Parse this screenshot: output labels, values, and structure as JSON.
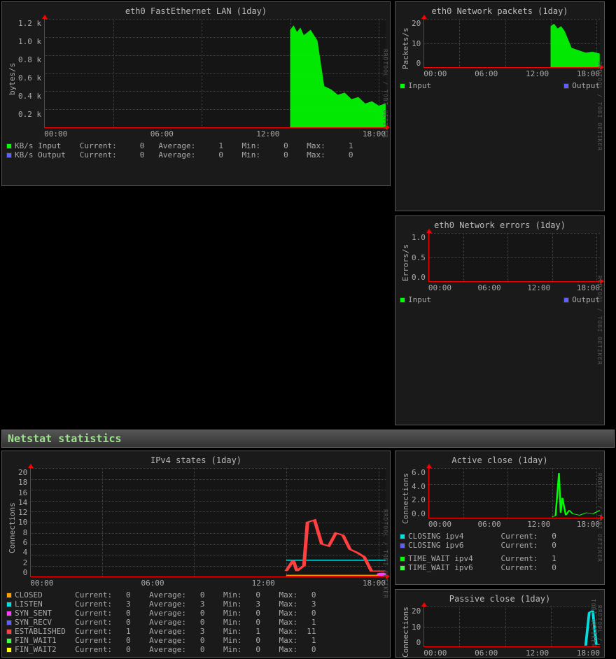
{
  "watermark": "RRDTOOL / TOBI OETIKER",
  "section2_title": "Netstat statistics",
  "colors": {
    "bg": "#000000",
    "panel": "#1a1a1a",
    "axis": "#ff0000",
    "grid": "#444444",
    "text": "#aaaaaa",
    "green": "#00ff00",
    "blue": "#6060ff",
    "orange": "#ffa000",
    "cyan": "#00e0e0",
    "magenta": "#ff40ff",
    "red": "#ff4040",
    "yellow": "#ffff00",
    "green2": "#40ff40",
    "purple": "#8080ff"
  },
  "chart_eth0_fe": {
    "title": "eth0 FastEthernet LAN  (1day)",
    "ylabel": "bytes/s",
    "yticks": [
      "1.2 k",
      "1.0 k",
      "0.8 k",
      "0.6 k",
      "0.4 k",
      "0.2 k",
      ""
    ],
    "xticks": [
      "00:00",
      "06:00",
      "12:00",
      "18:00"
    ],
    "type": "area",
    "series": [
      {
        "name": "KB/s Input",
        "color": "#00ff00",
        "current": "0",
        "average": "1",
        "min": "0",
        "max": "1"
      },
      {
        "name": "KB/s Output",
        "color": "#6060ff",
        "current": "0",
        "average": "0",
        "min": "0",
        "max": "0"
      }
    ],
    "area_green": {
      "x_start_pct": 70,
      "x_end_pct": 100,
      "peak_pct": 95,
      "tail_pct": 25
    }
  },
  "chart_eth0_pkt": {
    "title": "eth0 Network packets  (1day)",
    "ylabel": "Packets/s",
    "yticks": [
      "20",
      "10",
      "0"
    ],
    "xticks": [
      "00:00",
      "06:00",
      "12:00",
      "18:00"
    ],
    "type": "area",
    "legend": [
      {
        "name": "Input",
        "color": "#00ff00"
      },
      {
        "name": "Output",
        "color": "#6060ff"
      }
    ]
  },
  "chart_eth0_err": {
    "title": "eth0 Network errors  (1day)",
    "ylabel": "Errors/s",
    "yticks": [
      "1.0",
      "0.5",
      "0.0"
    ],
    "xticks": [
      "00:00",
      "06:00",
      "12:00",
      "18:00"
    ],
    "type": "area",
    "legend": [
      {
        "name": "Input",
        "color": "#00ff00"
      },
      {
        "name": "Output",
        "color": "#6060ff"
      }
    ]
  },
  "chart_ipv4": {
    "title": "IPv4 states  (1day)",
    "ylabel": "Connections",
    "yticks": [
      "20",
      "18",
      "16",
      "14",
      "12",
      "10",
      "8",
      "6",
      "4",
      "2",
      "0"
    ],
    "xticks": [
      "00:00",
      "06:00",
      "12:00",
      "18:00"
    ],
    "type": "line",
    "series": [
      {
        "name": "CLOSED",
        "color": "#ffa000",
        "current": "0",
        "average": "0",
        "min": "0",
        "max": "0"
      },
      {
        "name": "LISTEN",
        "color": "#00e0e0",
        "current": "3",
        "average": "3",
        "min": "3",
        "max": "3"
      },
      {
        "name": "SYN_SENT",
        "color": "#ff40ff",
        "current": "0",
        "average": "0",
        "min": "0",
        "max": "0"
      },
      {
        "name": "SYN_RECV",
        "color": "#6060ff",
        "current": "0",
        "average": "0",
        "min": "0",
        "max": "1"
      },
      {
        "name": "ESTABLISHED",
        "color": "#ff4040",
        "current": "1",
        "average": "3",
        "min": "1",
        "max": "11"
      },
      {
        "name": "FIN_WAIT1",
        "color": "#40ff40",
        "current": "0",
        "average": "0",
        "min": "0",
        "max": "1"
      },
      {
        "name": "FIN_WAIT2",
        "color": "#ffff00",
        "current": "0",
        "average": "0",
        "min": "0",
        "max": "0"
      }
    ]
  },
  "chart_active_close": {
    "title": "Active close  (1day)",
    "ylabel": "Connections",
    "yticks": [
      "6.0",
      "4.0",
      "2.0",
      "0.0"
    ],
    "xticks": [
      "00:00",
      "06:00",
      "12:00",
      "18:00"
    ],
    "type": "line",
    "legend": [
      {
        "name": "CLOSING ipv4",
        "color": "#00e0e0",
        "current": "0"
      },
      {
        "name": "CLOSING ipv6",
        "color": "#6060ff",
        "current": "0"
      },
      {
        "name": "TIME_WAIT ipv4",
        "color": "#00ff00",
        "current": "1"
      },
      {
        "name": "TIME_WAIT ipv6",
        "color": "#40ff40",
        "current": "0"
      }
    ]
  },
  "chart_passive_close": {
    "title": "Passive close  (1day)",
    "ylabel": "Connections",
    "yticks": [
      "20",
      "10",
      "0"
    ],
    "xticks": [
      "00:00",
      "06:00",
      "12:00",
      "18:00"
    ],
    "type": "line"
  },
  "labels": {
    "current": "Current:",
    "average": "Average:",
    "min": "Min:",
    "max": "Max:"
  }
}
